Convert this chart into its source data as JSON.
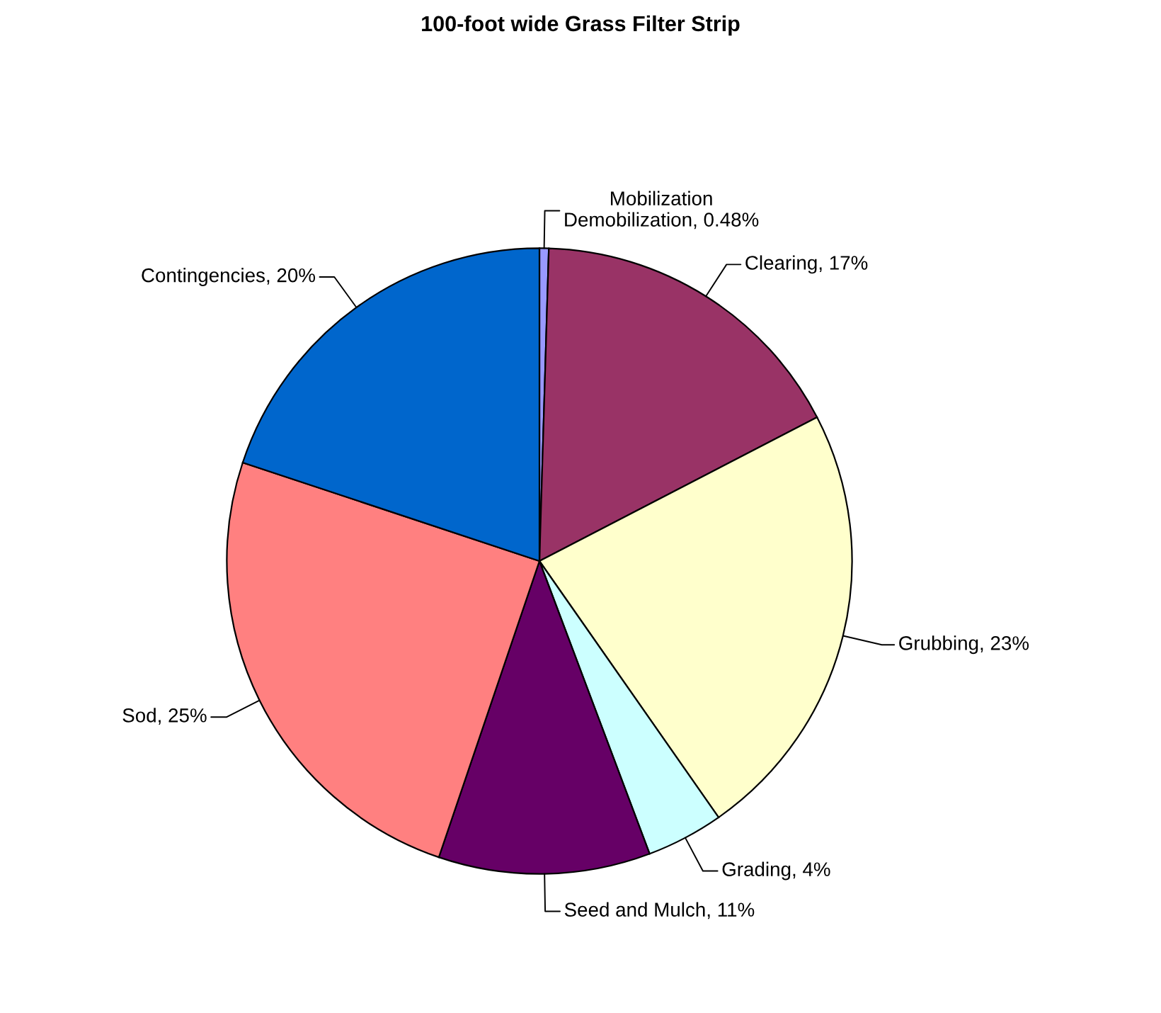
{
  "chart_data": {
    "type": "pie",
    "title": "100-foot wide Grass Filter Strip",
    "categories": [
      "Mobilization\nDemobilization, 0.48%",
      "Clearing, 17%",
      "Grubbing, 23%",
      "Grading, 4%",
      "Seed and Mulch, 11%",
      "Sod, 25%",
      "Contingencies, 20%"
    ],
    "values": [
      0.48,
      17,
      23,
      4,
      11,
      25,
      20
    ],
    "colors": [
      "#9999ff",
      "#993366",
      "#ffffcc",
      "#ccffff",
      "#660066",
      "#ff8080",
      "#0066cc"
    ],
    "legend": false
  }
}
